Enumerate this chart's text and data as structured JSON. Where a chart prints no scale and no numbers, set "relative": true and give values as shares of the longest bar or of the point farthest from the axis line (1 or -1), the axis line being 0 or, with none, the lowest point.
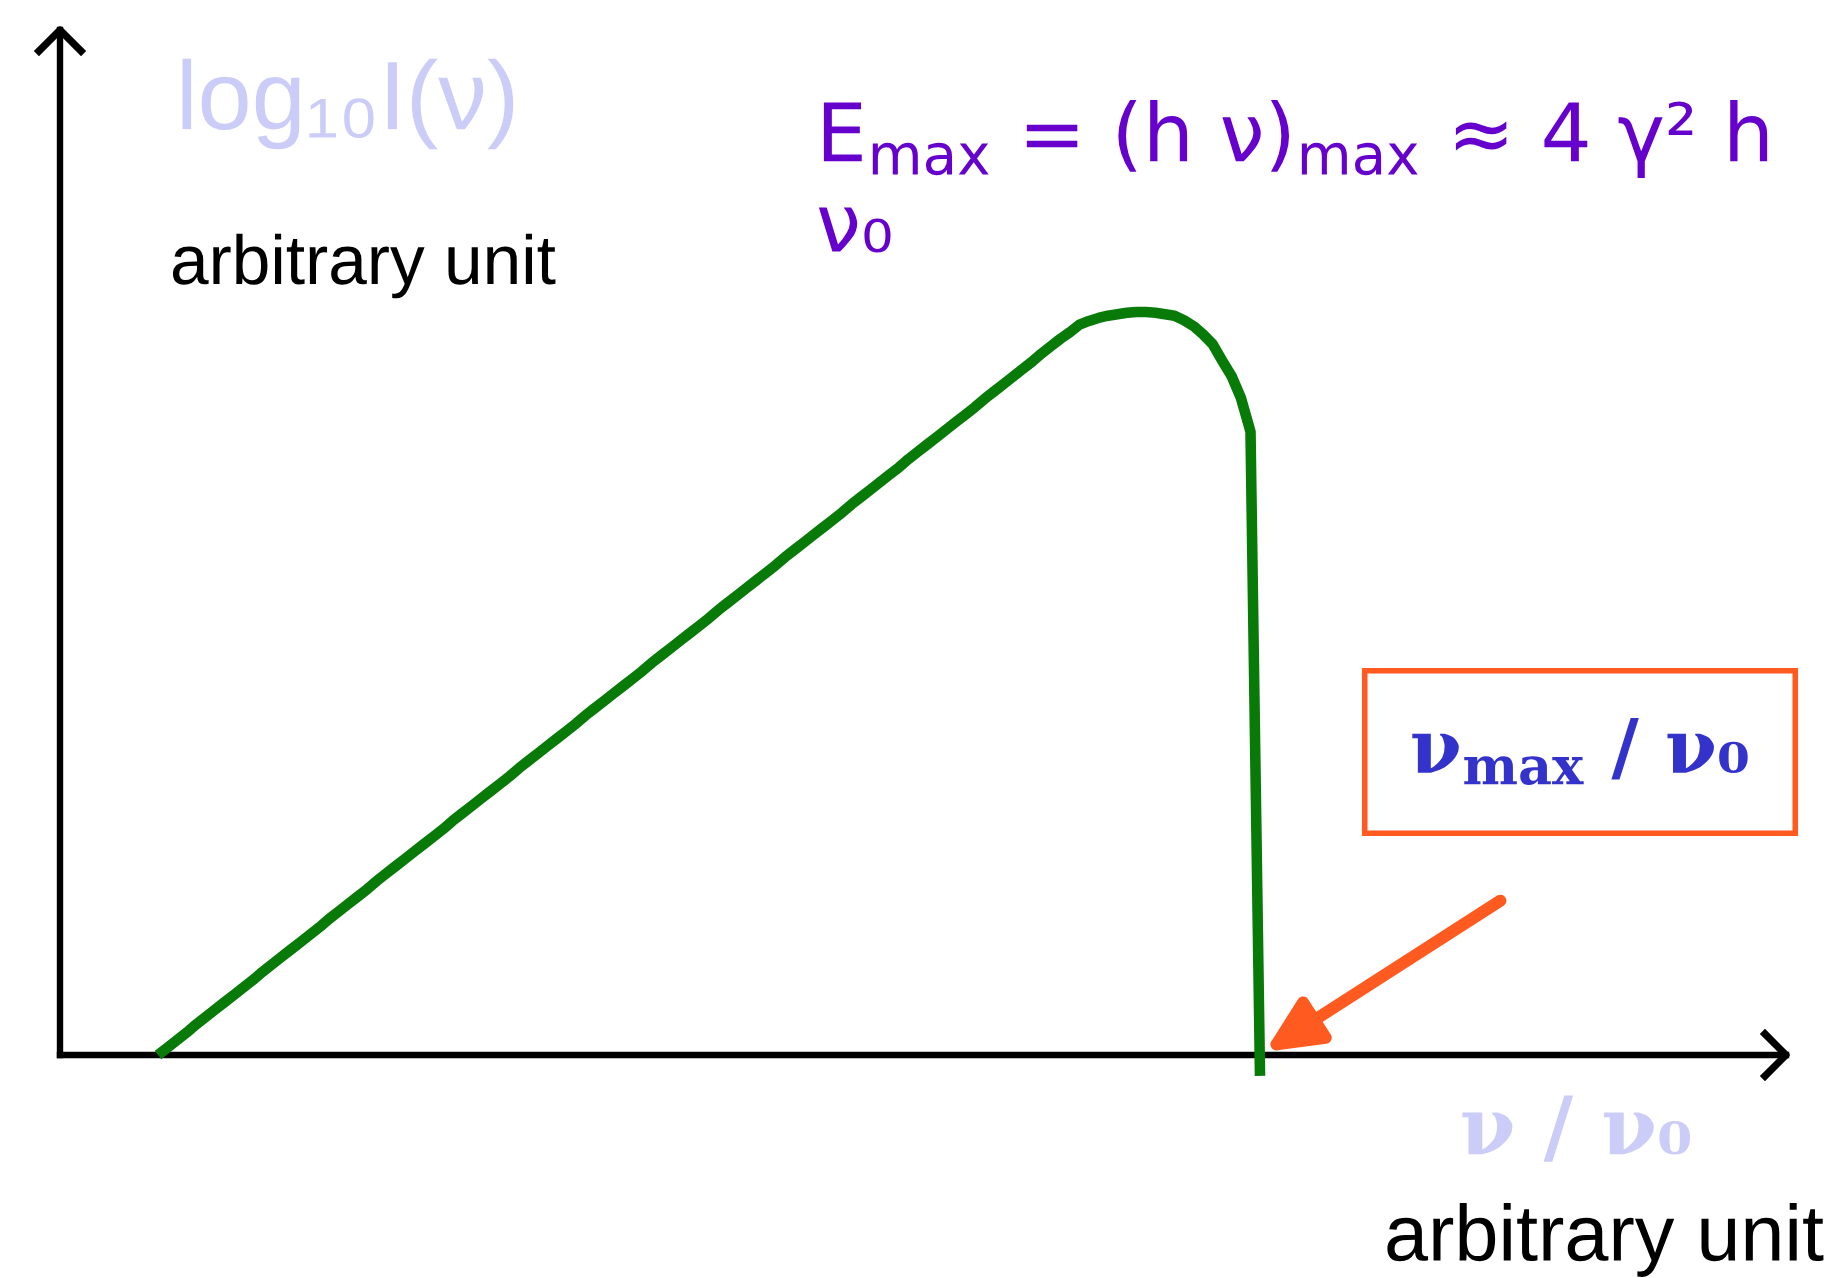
{
  "chart_data": {
    "type": "line",
    "relative": true,
    "ylabel": "log₁₀I(ν)",
    "xlabel": "ν / ν₀",
    "annotations": [
      "E$_{max}$ = (h ν)$_{max}$ ≈ 4 γ² h ν₀",
      "arbitrary unit",
      "ν$_{max}$ / ν₀",
      "arbitrary unit"
    ],
    "categories": [
      null,
      null,
      null,
      null,
      null,
      null,
      null,
      null,
      null,
      null,
      null,
      null,
      null,
      null,
      null,
      null,
      null,
      null,
      null,
      null,
      null,
      null,
      null,
      null,
      null,
      null,
      null,
      null,
      null,
      null,
      null,
      null,
      null,
      null,
      null,
      null,
      null,
      null,
      null,
      null,
      null,
      null,
      null,
      null,
      null,
      null,
      null,
      null,
      null,
      null,
      null,
      null,
      null,
      null,
      null,
      null,
      null,
      null,
      null,
      null,
      null,
      null,
      null,
      null,
      null,
      null,
      null,
      null,
      null,
      null,
      null,
      null,
      null,
      null,
      null,
      null,
      null,
      null,
      null,
      null,
      null,
      null,
      null,
      null,
      null,
      null,
      null,
      null,
      null,
      null,
      null,
      null,
      null,
      null,
      null,
      null,
      null,
      null,
      null,
      null,
      null,
      null,
      null,
      null,
      null,
      null,
      null,
      null,
      null,
      null,
      null,
      null,
      null,
      null,
      null,
      null,
      null
    ],
    "series": [
      {
        "color": "#077a07",
        "values": [
          0,
          0.01,
          0.02,
          0.03,
          0.041,
          0.051,
          0.061,
          0.071,
          0.081,
          0.091,
          0.101,
          0.112,
          0.122,
          0.132,
          0.142,
          0.152,
          0.162,
          0.172,
          0.183,
          0.193,
          0.203,
          0.213,
          0.223,
          0.234,
          0.244,
          0.254,
          0.264,
          0.274,
          0.284,
          0.294,
          0.304,
          0.315,
          0.325,
          0.335,
          0.345,
          0.355,
          0.365,
          0.375,
          0.386,
          0.396,
          0.406,
          0.416,
          0.426,
          0.436,
          0.446,
          0.457,
          0.467,
          0.477,
          0.487,
          0.497,
          0.507,
          0.517,
          0.528,
          0.538,
          0.548,
          0.558,
          0.568,
          0.578,
          0.588,
          0.599,
          0.609,
          0.619,
          0.629,
          0.639,
          0.649,
          0.659,
          0.67,
          0.68,
          0.69,
          0.7,
          0.71,
          0.72,
          0.73,
          0.741,
          0.751,
          0.761,
          0.771,
          0.781,
          0.791,
          0.802,
          0.812,
          0.822,
          0.832,
          0.842,
          0.852,
          0.862,
          0.872,
          0.883,
          0.893,
          0.903,
          0.913,
          0.923,
          0.933,
          0.944,
          0.954,
          0.964,
          0.973,
          0.983,
          0.988,
          0.992,
          0.995,
          0.997,
          0.999,
          1.0,
          1.0,
          0.999,
          0.997,
          0.995,
          0.989,
          0.981,
          0.97,
          0.957,
          0.935,
          0.914,
          0.884,
          0.839,
          -0.028
        ]
      }
    ]
  }
}
